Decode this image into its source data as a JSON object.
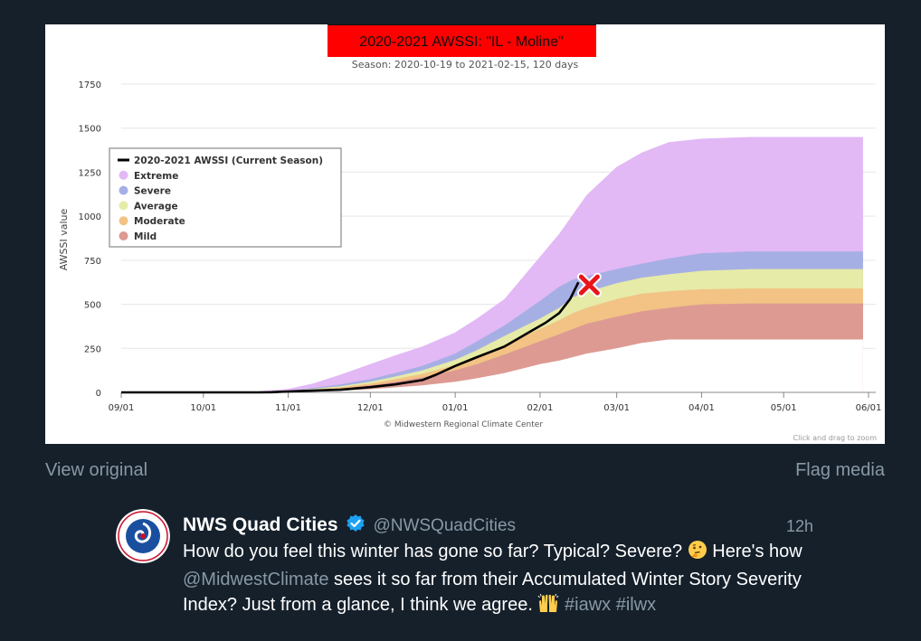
{
  "chart_data": {
    "type": "area",
    "title": "2020-2021 AWSSI: \"IL - Moline\"",
    "subtitle": "Season: 2020-10-19 to 2021-02-15, 120 days",
    "ylabel": "AWSSI value",
    "xlabel": "",
    "credit": "© Midwestern Regional Climate Center",
    "zoom_hint": "Click and drag to zoom",
    "ylim": [
      0,
      1750
    ],
    "yticks": [
      "0",
      "250",
      "500",
      "750",
      "1000",
      "1250",
      "1500",
      "1750"
    ],
    "xlim": [
      0,
      273
    ],
    "xticks": [
      {
        "label": "09/01",
        "day": 0
      },
      {
        "label": "10/01",
        "day": 30
      },
      {
        "label": "11/01",
        "day": 61
      },
      {
        "label": "12/01",
        "day": 91
      },
      {
        "label": "01/01",
        "day": 122
      },
      {
        "label": "02/01",
        "day": 153
      },
      {
        "label": "03/01",
        "day": 181
      },
      {
        "label": "04/01",
        "day": 212
      },
      {
        "label": "05/01",
        "day": 242
      },
      {
        "label": "06/01",
        "day": 273
      }
    ],
    "grid": true,
    "legend_position": "top-left",
    "legend": [
      {
        "name": "2020-2021 AWSSI (Current Season)",
        "color": "#000000",
        "kind": "line"
      },
      {
        "name": "Extreme",
        "color": "#e2b8f5",
        "kind": "dot"
      },
      {
        "name": "Severe",
        "color": "#a6afe4",
        "kind": "dot"
      },
      {
        "name": "Average",
        "color": "#e6eba8",
        "kind": "dot"
      },
      {
        "name": "Moderate",
        "color": "#f2c384",
        "kind": "dot"
      },
      {
        "name": "Mild",
        "color": "#dd9a92",
        "kind": "dot"
      }
    ],
    "x": [
      0,
      50,
      61,
      70,
      80,
      91,
      100,
      110,
      122,
      130,
      140,
      153,
      160,
      165,
      170,
      181,
      190,
      200,
      212,
      230,
      242,
      260,
      271
    ],
    "bands": [
      {
        "name": "Extreme",
        "color": "#e2b8f5",
        "values": [
          0,
          5,
          20,
          50,
          100,
          160,
          210,
          260,
          340,
          420,
          530,
          770,
          900,
          1010,
          1120,
          1280,
          1360,
          1420,
          1440,
          1450,
          1450,
          1450,
          1450
        ]
      },
      {
        "name": "Severe",
        "color": "#a6afe4",
        "values": [
          0,
          3,
          10,
          25,
          45,
          75,
          110,
          150,
          220,
          290,
          380,
          520,
          600,
          640,
          660,
          700,
          730,
          760,
          790,
          800,
          800,
          800,
          800
        ]
      },
      {
        "name": "Average",
        "color": "#e6eba8",
        "values": [
          0,
          2,
          8,
          20,
          35,
          60,
          90,
          125,
          185,
          240,
          320,
          420,
          480,
          540,
          570,
          620,
          650,
          670,
          690,
          700,
          700,
          700,
          700
        ]
      },
      {
        "name": "Moderate",
        "color": "#f2c384",
        "values": [
          0,
          1,
          6,
          15,
          28,
          50,
          75,
          105,
          155,
          200,
          270,
          360,
          410,
          450,
          480,
          530,
          560,
          575,
          585,
          590,
          590,
          590,
          590
        ]
      },
      {
        "name": "Mild",
        "color": "#dd9a92",
        "values": [
          0,
          1,
          5,
          12,
          22,
          40,
          60,
          85,
          125,
          160,
          215,
          290,
          330,
          360,
          390,
          430,
          460,
          480,
          500,
          505,
          505,
          505,
          505
        ]
      },
      {
        "name": "Floor",
        "color": "#ffffff",
        "values": [
          0,
          0,
          2,
          5,
          10,
          18,
          28,
          40,
          60,
          80,
          110,
          160,
          180,
          200,
          220,
          250,
          280,
          300,
          300,
          300,
          300,
          300,
          300
        ]
      }
    ],
    "current_season": {
      "name": "2020-2021 AWSSI (Current Season)",
      "x": [
        0,
        50,
        55,
        61,
        70,
        80,
        91,
        100,
        110,
        115,
        122,
        130,
        140,
        150,
        155,
        160,
        164,
        167
      ],
      "values": [
        0,
        0,
        1,
        5,
        10,
        15,
        30,
        45,
        70,
        100,
        150,
        200,
        260,
        350,
        395,
        450,
        530,
        625
      ]
    },
    "marker": {
      "x": 171,
      "value": 610,
      "symbol": "X",
      "color": "#e8151b"
    }
  },
  "media": {
    "view_original": "View original",
    "flag_media": "Flag media"
  },
  "tweet": {
    "display_name": "NWS Quad Cities",
    "handle": "@NWSQuadCities",
    "time": "12h",
    "text_1": "How do you feel this winter has gone so far? Typical? Severe?",
    "text_2": "Here's how",
    "mention": "@MidwestClimate",
    "text_3": "sees it so far from their Accumulated Winter Story Severity Index? Just from a glance, I think we agree.",
    "hashtag_1": "#iawx",
    "hashtag_2": "#ilwx",
    "icons": [
      "nws-logo-icon",
      "verified-badge-icon",
      "thinking-face-icon",
      "raising-hands-icon"
    ]
  }
}
